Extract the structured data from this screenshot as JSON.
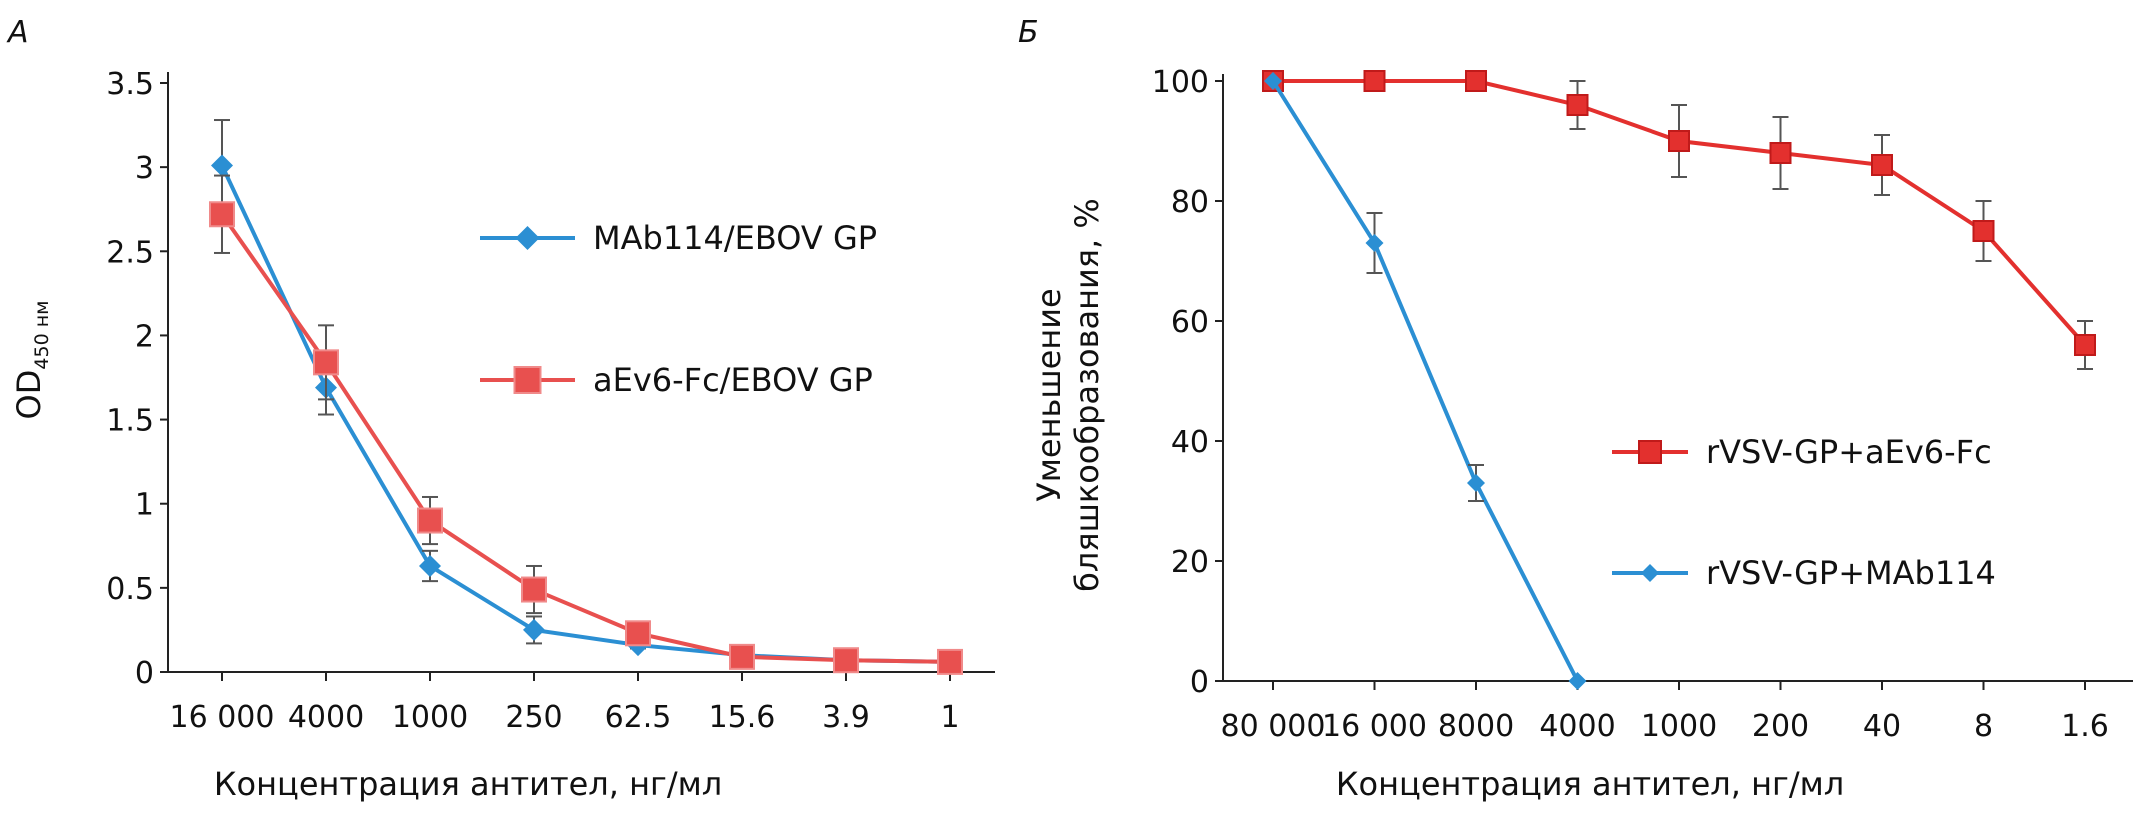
{
  "chart_data": [
    {
      "panel": "А",
      "type": "line",
      "title": "",
      "ylabel_main": "OD",
      "ylabel_sub": "450 нм",
      "xlabel": "Концентрация антител, нг/мл",
      "categories": [
        "16 000",
        "4000",
        "1000",
        "250",
        "62.5",
        "15.6",
        "3.9",
        "1"
      ],
      "yticks": [
        "0",
        "0.5",
        "1",
        "1.5",
        "2",
        "2.5",
        "3",
        "3.5"
      ],
      "ylim": [
        0,
        3.5
      ],
      "grid": false,
      "legend_position": "center-right",
      "series": [
        {
          "name": "MAb114/EBOV GP",
          "color": "#2b8fd3",
          "marker": "diamond",
          "values": [
            3.01,
            1.69,
            0.63,
            0.25,
            0.16,
            0.1,
            0.07,
            0.06
          ],
          "errors": [
            0.27,
            0.16,
            0.09,
            0.08,
            0.02,
            0.02,
            0.01,
            0.01
          ]
        },
        {
          "name": "aEv6-Fc/EBOV GP",
          "color": "#e8504f",
          "marker": "square",
          "values": [
            2.72,
            1.84,
            0.9,
            0.49,
            0.23,
            0.09,
            0.07,
            0.06
          ],
          "errors": [
            0.23,
            0.22,
            0.14,
            0.14,
            0.03,
            0.02,
            0.01,
            0.01
          ]
        }
      ]
    },
    {
      "panel": "Б",
      "type": "line",
      "title": "",
      "ylabel_line1": "Уменьшение",
      "ylabel_line2": "бляшкообразования, %",
      "xlabel": "Концентрация антител, нг/мл",
      "categories": [
        "80 000",
        "16 000",
        "8000",
        "4000",
        "1000",
        "200",
        "40",
        "8",
        "1.6"
      ],
      "yticks": [
        "0",
        "20",
        "40",
        "60",
        "80",
        "100"
      ],
      "ylim": [
        0,
        100
      ],
      "grid": false,
      "legend_position": "center-right",
      "series": [
        {
          "name": "rVSV-GP+aEv6-Fc",
          "color": "#e3302e",
          "marker": "square",
          "values": [
            100,
            100,
            100,
            96,
            90,
            88,
            86,
            75,
            56
          ],
          "errors": [
            0,
            0,
            0,
            4,
            6,
            6,
            5,
            5,
            4
          ]
        },
        {
          "name": "rVSV-GP+MAb114",
          "color": "#2b8fd3",
          "marker": "diamond",
          "values": [
            100,
            73,
            33,
            0,
            null,
            null,
            null,
            null,
            null
          ],
          "errors": [
            0,
            5,
            3,
            0,
            null,
            null,
            null,
            null,
            null
          ]
        }
      ]
    }
  ]
}
